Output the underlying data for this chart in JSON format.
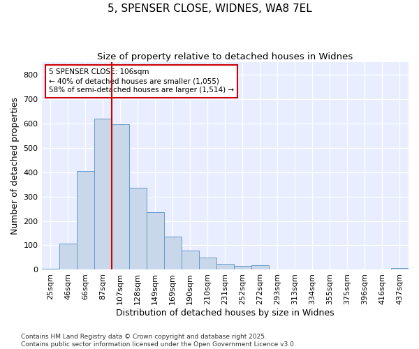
{
  "title": "5, SPENSER CLOSE, WIDNES, WA8 7EL",
  "subtitle": "Size of property relative to detached houses in Widnes",
  "xlabel": "Distribution of detached houses by size in Widnes",
  "ylabel": "Number of detached properties",
  "bar_color": "#c8d8ea",
  "bar_edge_color": "#6699cc",
  "categories": [
    "25sqm",
    "46sqm",
    "66sqm",
    "87sqm",
    "107sqm",
    "128sqm",
    "149sqm",
    "169sqm",
    "190sqm",
    "210sqm",
    "231sqm",
    "252sqm",
    "272sqm",
    "293sqm",
    "313sqm",
    "334sqm",
    "355sqm",
    "375sqm",
    "396sqm",
    "416sqm",
    "437sqm"
  ],
  "values": [
    5,
    108,
    405,
    620,
    597,
    335,
    237,
    137,
    79,
    50,
    24,
    15,
    18,
    0,
    0,
    0,
    0,
    0,
    0,
    0,
    7
  ],
  "vline_index": 3.5,
  "vline_color": "#cc0000",
  "annotation_line1": "5 SPENSER CLOSE: 106sqm",
  "annotation_line2": "← 40% of detached houses are smaller (1,055)",
  "annotation_line3": "58% of semi-detached houses are larger (1,514) →",
  "annotation_box_edge_color": "#cc0000",
  "footnote1": "Contains HM Land Registry data © Crown copyright and database right 2025.",
  "footnote2": "Contains public sector information licensed under the Open Government Licence v3.0.",
  "ylim": [
    0,
    850
  ],
  "yticks": [
    0,
    100,
    200,
    300,
    400,
    500,
    600,
    700,
    800
  ],
  "background_color": "#ffffff",
  "plot_bg_color": "#e8eeff",
  "grid_color": "#ffffff",
  "title_fontsize": 11,
  "subtitle_fontsize": 9.5,
  "axis_label_fontsize": 9,
  "tick_fontsize": 8,
  "footnote_fontsize": 6.5
}
